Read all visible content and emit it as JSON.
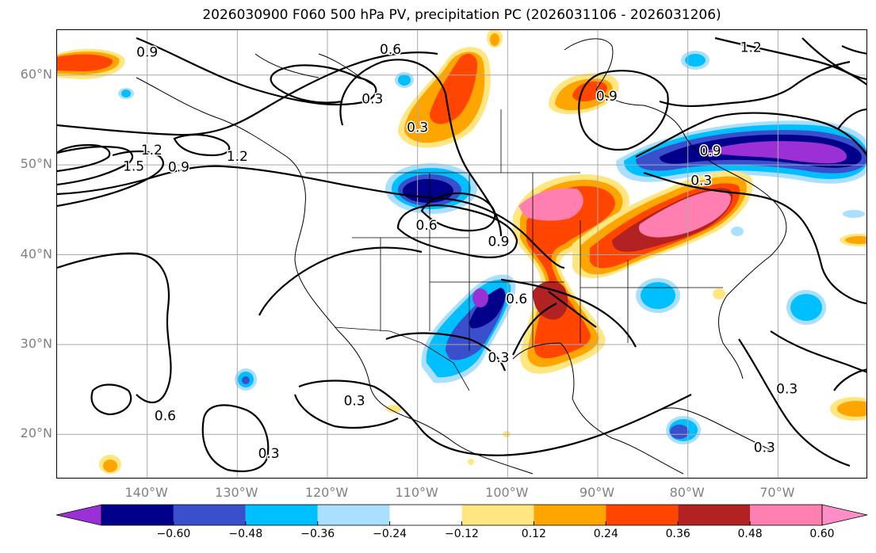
{
  "title": "2026030900 F060 500 hPa PV, precipitation PC (2026031106 - 2026031206)",
  "map": {
    "projection": "equirectangular",
    "lon_range": [
      -150,
      -60
    ],
    "lat_range": [
      15,
      65
    ],
    "lat_ticks": [
      {
        "value": 60,
        "label": "60°N"
      },
      {
        "value": 50,
        "label": "50°N"
      },
      {
        "value": 40,
        "label": "40°N"
      },
      {
        "value": 30,
        "label": "30°N"
      },
      {
        "value": 20,
        "label": "20°N"
      }
    ],
    "lon_ticks": [
      {
        "value": -140,
        "label": "140°W"
      },
      {
        "value": -130,
        "label": "130°W"
      },
      {
        "value": -120,
        "label": "120°W"
      },
      {
        "value": -110,
        "label": "110°W"
      },
      {
        "value": -100,
        "label": "100°W"
      },
      {
        "value": -90,
        "label": "90°W"
      },
      {
        "value": -80,
        "label": "80°W"
      },
      {
        "value": -70,
        "label": "70°W"
      }
    ],
    "contour_labels": [
      {
        "text": "0.9",
        "lon": -140,
        "lat": 62.5
      },
      {
        "text": "0.6",
        "lon": -113,
        "lat": 62.8
      },
      {
        "text": "0.3",
        "lon": -115,
        "lat": 57.3
      },
      {
        "text": "1.2",
        "lon": -130,
        "lat": 50.9
      },
      {
        "text": "0.9",
        "lon": -136.5,
        "lat": 49.7
      },
      {
        "text": "1.5",
        "lon": -141.5,
        "lat": 49.8
      },
      {
        "text": "1.2",
        "lon": -139.5,
        "lat": 51.6
      },
      {
        "text": "0.3",
        "lon": -110,
        "lat": 54.1
      },
      {
        "text": "0.6",
        "lon": -109,
        "lat": 43.2
      },
      {
        "text": "0.9",
        "lon": -101,
        "lat": 41.4
      },
      {
        "text": "0.6",
        "lon": -99,
        "lat": 35.0
      },
      {
        "text": "0.3",
        "lon": -101,
        "lat": 28.5
      },
      {
        "text": "0.3",
        "lon": -117,
        "lat": 23.7
      },
      {
        "text": "0.6",
        "lon": -138,
        "lat": 22.0
      },
      {
        "text": "0.3",
        "lon": -126.5,
        "lat": 17.8
      },
      {
        "text": "0.9",
        "lon": -89,
        "lat": 57.6
      },
      {
        "text": "1.2",
        "lon": -73,
        "lat": 63.0
      },
      {
        "text": "0.9",
        "lon": -77.5,
        "lat": 51.5
      },
      {
        "text": "0.3",
        "lon": -78.5,
        "lat": 48.2
      },
      {
        "text": "0.3",
        "lon": -69,
        "lat": 25.0
      },
      {
        "text": "0.3",
        "lon": -71.5,
        "lat": 18.5
      }
    ],
    "pv_contour_levels": [
      0.3,
      0.6,
      0.9,
      1.2,
      1.5,
      1.8,
      2.1
    ]
  },
  "colorbar": {
    "extend": "both",
    "colors": [
      "#9b30d6",
      "#00008b",
      "#3a4fcc",
      "#00bfff",
      "#aadfff",
      "#ffffff",
      "#ffe680",
      "#ffa500",
      "#ff4500",
      "#b22222",
      "#ff80b0",
      "#ff8ec8"
    ],
    "tick_labels": [
      "−0.60",
      "−0.48",
      "−0.36",
      "−0.24",
      "−0.12",
      "0.12",
      "0.24",
      "0.36",
      "0.48",
      "0.60"
    ],
    "levels": [
      -0.6,
      -0.48,
      -0.36,
      -0.24,
      -0.12,
      0.12,
      0.24,
      0.36,
      0.48,
      0.6
    ]
  }
}
